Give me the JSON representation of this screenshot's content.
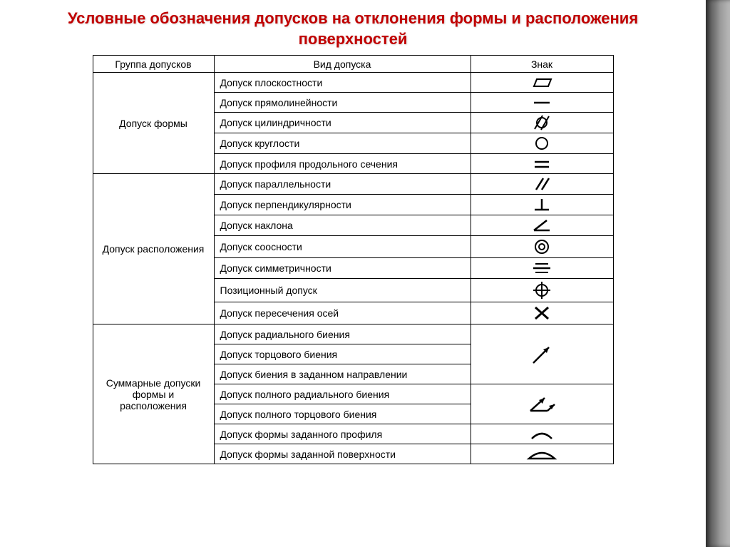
{
  "title_line1": "Условные обозначения допусков на отклонения формы и расположения",
  "title_line2": "поверхностей",
  "headers": {
    "group": "Группа допусков",
    "type": "Вид допуска",
    "sign": "Знак"
  },
  "groups": [
    {
      "name": "Допуск формы",
      "items": [
        {
          "label": "Допуск плоскостности",
          "icon": "flatness"
        },
        {
          "label": "Допуск прямолинейности",
          "icon": "straightness"
        },
        {
          "label": "Допуск цилиндричности",
          "icon": "cylindricity"
        },
        {
          "label": "Допуск круглости",
          "icon": "roundness"
        },
        {
          "label": "Допуск профиля продольного сечения",
          "icon": "profile-longitudinal"
        }
      ]
    },
    {
      "name": "Допуск расположения",
      "items": [
        {
          "label": "Допуск параллельности",
          "icon": "parallelism"
        },
        {
          "label": "Допуск перпендикулярности",
          "icon": "perpendicularity"
        },
        {
          "label": "Допуск наклона",
          "icon": "angularity"
        },
        {
          "label": "Допуск соосности",
          "icon": "concentricity"
        },
        {
          "label": "Допуск симметричности",
          "icon": "symmetry"
        },
        {
          "label": "Позиционный допуск",
          "icon": "position"
        },
        {
          "label": "Допуск пересечения осей",
          "icon": "axis-crossing"
        }
      ]
    },
    {
      "name": "Суммарные допуски формы и расположения",
      "items": [
        {
          "label": "Допуск радиального биения",
          "icon": ""
        },
        {
          "label": "Допуск торцового биения",
          "icon": "runout-arrow",
          "span": 3
        },
        {
          "label": "Допуск биения в заданном направлении",
          "icon": ""
        },
        {
          "label": "Допуск полного радиального биения",
          "icon": ""
        },
        {
          "label": "Допуск полного торцового биения",
          "icon": "total-runout",
          "span": 2
        },
        {
          "label": "Допуск формы заданного профиля",
          "icon": "profile-line"
        },
        {
          "label": "Допуск формы заданной поверхности",
          "icon": "profile-surface"
        }
      ]
    }
  ],
  "colors": {
    "title": "#c00000",
    "border": "#000000",
    "stroke": "#000000"
  }
}
